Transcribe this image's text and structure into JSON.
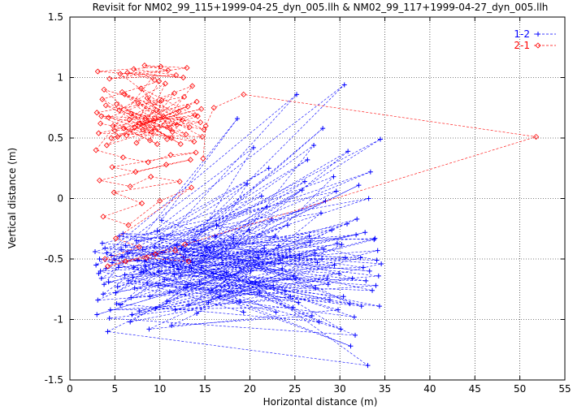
{
  "chart_data": {
    "type": "scatter",
    "title": "Revisit for NM02_99_115+1999-04-25_dyn_005.llh & NM02_99_117+1999-04-27_dyn_005.llh",
    "xlabel": "Horizontal distance (m)",
    "ylabel": "Vertical distance (m)",
    "xlim": [
      0,
      55
    ],
    "ylim": [
      -1.5,
      1.5
    ],
    "xticks": [
      0,
      5,
      10,
      15,
      20,
      25,
      30,
      35,
      40,
      45,
      50,
      55
    ],
    "yticks": [
      -1.5,
      -1,
      -0.5,
      0,
      0.5,
      1,
      1.5
    ],
    "ytick_labels": [
      "-1.5",
      "-1",
      "-0.5",
      "0",
      "0.5",
      "1",
      "1.5"
    ],
    "grid": true,
    "legend_position": "top-right",
    "series": [
      {
        "name": "1-2",
        "color": "#0000ff",
        "marker": "plus",
        "line": "dashed",
        "points": [
          [
            3.2,
            -0.62
          ],
          [
            30.5,
            0.94
          ],
          [
            12.4,
            -0.41
          ],
          [
            28.1,
            0.58
          ],
          [
            5.6,
            -0.88
          ],
          [
            34.5,
            0.49
          ],
          [
            8.3,
            -0.52
          ],
          [
            25.2,
            0.86
          ],
          [
            4.1,
            -0.45
          ],
          [
            22.8,
            -0.31
          ],
          [
            6.7,
            -1.02
          ],
          [
            31.4,
            -0.66
          ],
          [
            10.2,
            -0.18
          ],
          [
            18.6,
            0.66
          ],
          [
            3.8,
            -0.71
          ],
          [
            33.2,
            0.0
          ],
          [
            7.4,
            -0.35
          ],
          [
            27.9,
            -0.12
          ],
          [
            14.1,
            -0.95
          ],
          [
            29.3,
            0.18
          ],
          [
            2.9,
            -0.55
          ],
          [
            20.4,
            0.42
          ],
          [
            11.6,
            -0.63
          ],
          [
            32.8,
            -0.28
          ],
          [
            5.1,
            -0.78
          ],
          [
            26.4,
            0.32
          ],
          [
            9.2,
            -0.46
          ],
          [
            34.1,
            -0.51
          ],
          [
            16.3,
            -0.22
          ],
          [
            24.5,
            -0.81
          ],
          [
            4.4,
            -0.99
          ],
          [
            31.7,
            -1.13
          ],
          [
            13.5,
            -0.58
          ],
          [
            21.9,
            -0.07
          ],
          [
            6.2,
            -0.39
          ],
          [
            29.8,
            -0.92
          ],
          [
            8.8,
            -1.08
          ],
          [
            27.2,
            -0.45
          ],
          [
            3.5,
            -0.66
          ],
          [
            19.7,
            0.12
          ],
          [
            12.9,
            -0.74
          ],
          [
            33.8,
            -0.34
          ],
          [
            5.9,
            -0.29
          ],
          [
            23.6,
            -0.58
          ],
          [
            10.8,
            -0.85
          ],
          [
            30.9,
            0.39
          ],
          [
            7.9,
            -0.61
          ],
          [
            18.2,
            -0.33
          ],
          [
            3.1,
            -0.84
          ],
          [
            28.7,
            -0.71
          ],
          [
            14.8,
            -0.47
          ],
          [
            25.8,
            0.07
          ],
          [
            6.5,
            -0.68
          ],
          [
            32.4,
            -0.89
          ],
          [
            9.7,
            -0.27
          ],
          [
            22.1,
            0.25
          ],
          [
            4.7,
            -0.53
          ],
          [
            30.2,
            -0.38
          ],
          [
            11.3,
            -1.05
          ],
          [
            26.9,
            -0.97
          ],
          [
            8.1,
            -0.42
          ],
          [
            34.3,
            -0.64
          ],
          [
            15.7,
            -0.76
          ],
          [
            20.9,
            -0.49
          ],
          [
            3.6,
            -0.37
          ],
          [
            29.6,
            0.06
          ],
          [
            12.1,
            -0.59
          ],
          [
            24.2,
            -0.22
          ],
          [
            5.3,
            -0.73
          ],
          [
            31.9,
            -0.17
          ],
          [
            9.5,
            -0.91
          ],
          [
            17.4,
            -0.61
          ],
          [
            4.2,
            -1.1
          ],
          [
            33.1,
            -1.38
          ],
          [
            13.8,
            -0.34
          ],
          [
            27.5,
            -0.53
          ],
          [
            7.1,
            -0.57
          ],
          [
            21.3,
            0.02
          ],
          [
            2.8,
            -0.44
          ],
          [
            28.9,
            -0.84
          ],
          [
            10.5,
            -0.67
          ],
          [
            32.1,
            0.11
          ],
          [
            6.8,
            -0.82
          ],
          [
            25.1,
            -0.66
          ],
          [
            15.2,
            -0.4
          ],
          [
            19.3,
            -0.94
          ],
          [
            3.4,
            -0.6
          ],
          [
            30.6,
            -0.49
          ],
          [
            11.9,
            -0.38
          ],
          [
            26.1,
            0.14
          ],
          [
            8.6,
            -0.7
          ],
          [
            33.6,
            -0.76
          ],
          [
            5.5,
            -0.31
          ],
          [
            23.2,
            -0.39
          ],
          [
            13.2,
            -0.88
          ],
          [
            29.1,
            -0.26
          ],
          [
            4.9,
            -0.5
          ],
          [
            31.2,
            -1.22
          ],
          [
            9.9,
            -0.6
          ],
          [
            22.6,
            -0.72
          ],
          [
            7.7,
            -0.93
          ],
          [
            34.2,
            -0.43
          ],
          [
            16.9,
            -0.53
          ],
          [
            27.1,
            0.44
          ],
          [
            3.7,
            -0.79
          ],
          [
            20.1,
            -0.6
          ],
          [
            12.6,
            -0.48
          ],
          [
            28.4,
            -0.02
          ],
          [
            6.1,
            -0.63
          ],
          [
            32.6,
            -0.57
          ],
          [
            10.1,
            -0.33
          ],
          [
            24.8,
            -0.9
          ],
          [
            4.5,
            -0.92
          ],
          [
            30.4,
            -0.81
          ],
          [
            14.4,
            -0.69
          ],
          [
            21.6,
            -0.41
          ],
          [
            8.4,
            -0.56
          ],
          [
            33.4,
            0.22
          ],
          [
            5.8,
            -0.48
          ],
          [
            26.6,
            -0.31
          ],
          [
            11.1,
            -0.77
          ],
          [
            29.9,
            -0.62
          ],
          [
            3.3,
            -0.5
          ],
          [
            18.9,
            -0.85
          ],
          [
            13.6,
            -0.53
          ],
          [
            31.6,
            -0.98
          ],
          [
            7.2,
            -0.74
          ],
          [
            25.5,
            -0.47
          ],
          [
            9.4,
            -0.4
          ],
          [
            34.6,
            -0.54
          ],
          [
            15.4,
            -0.86
          ],
          [
            22.4,
            -0.17
          ],
          [
            4.0,
            -0.58
          ],
          [
            28.2,
            -0.42
          ],
          [
            12.3,
            -0.64
          ],
          [
            32.9,
            -0.68
          ],
          [
            6.4,
            -0.45
          ],
          [
            23.9,
            -0.76
          ],
          [
            10.6,
            -0.52
          ],
          [
            30.8,
            -0.21
          ],
          [
            5.2,
            -0.87
          ],
          [
            27.7,
            -1.02
          ],
          [
            14.6,
            -0.57
          ],
          [
            19.9,
            -0.26
          ],
          [
            8.9,
            -0.81
          ],
          [
            33.9,
            -0.33
          ],
          [
            3.9,
            -0.41
          ],
          [
            24.9,
            -0.64
          ],
          [
            11.7,
            -0.92
          ],
          [
            29.4,
            -0.55
          ],
          [
            7.5,
            -0.51
          ],
          [
            31.1,
            -0.87
          ],
          [
            16.1,
            -0.31
          ],
          [
            21.1,
            -0.78
          ],
          [
            4.3,
            -0.69
          ],
          [
            26.7,
            -0.36
          ],
          [
            12.8,
            -0.44
          ],
          [
            32.3,
            -0.49
          ],
          [
            6.9,
            -0.96
          ],
          [
            28.6,
            -0.66
          ],
          [
            9.8,
            -0.72
          ],
          [
            34.4,
            -0.89
          ],
          [
            15.9,
            -0.62
          ],
          [
            23.4,
            -0.51
          ],
          [
            3.0,
            -0.96
          ],
          [
            29.7,
            -0.37
          ],
          [
            13.1,
            -0.71
          ],
          [
            25.4,
            -0.86
          ],
          [
            5.7,
            -0.42
          ],
          [
            33.3,
            -0.6
          ],
          [
            10.3,
            -0.45
          ],
          [
            20.6,
            -0.69
          ],
          [
            8.2,
            -0.6
          ],
          [
            30.1,
            -1.08
          ],
          [
            14.3,
            -0.37
          ],
          [
            27.3,
            -0.74
          ],
          [
            4.6,
            -0.47
          ],
          [
            31.8,
            -0.3
          ],
          [
            11.4,
            -0.55
          ],
          [
            22.9,
            -0.94
          ],
          [
            7.0,
            -0.65
          ],
          [
            28.0,
            -0.5
          ],
          [
            16.6,
            -0.81
          ],
          [
            34.0,
            -0.72
          ],
          [
            5.4,
            -0.57
          ],
          [
            24.4,
            -0.42
          ]
        ]
      },
      {
        "name": "2-1",
        "color": "#ff0000",
        "marker": "diamond",
        "line": "dashed",
        "points": [
          [
            3.4,
            0.62
          ],
          [
            13.8,
            0.47
          ],
          [
            5.2,
            0.78
          ],
          [
            11.4,
            0.55
          ],
          [
            7.9,
            0.91
          ],
          [
            14.2,
            0.68
          ],
          [
            4.1,
            0.44
          ],
          [
            9.6,
            0.73
          ],
          [
            6.3,
            0.52
          ],
          [
            12.7,
            0.84
          ],
          [
            3.0,
            0.71
          ],
          [
            10.8,
            0.49
          ],
          [
            8.4,
            0.66
          ],
          [
            14.9,
            0.57
          ],
          [
            5.8,
            0.88
          ],
          [
            11.9,
            0.61
          ],
          [
            4.6,
            0.5
          ],
          [
            13.1,
            0.76
          ],
          [
            7.2,
            0.59
          ],
          [
            9.9,
            0.97
          ],
          [
            3.6,
            0.82
          ],
          [
            12.3,
            0.45
          ],
          [
            6.8,
            0.7
          ],
          [
            14.5,
            0.63
          ],
          [
            5.0,
            0.56
          ],
          [
            10.2,
            0.81
          ],
          [
            8.9,
            0.48
          ],
          [
            13.6,
            0.93
          ],
          [
            4.3,
            0.67
          ],
          [
            11.1,
            0.58
          ],
          [
            7.6,
            0.79
          ],
          [
            14.7,
            0.51
          ],
          [
            3.2,
            0.54
          ],
          [
            9.3,
            0.64
          ],
          [
            6.1,
            0.86
          ],
          [
            12.9,
            0.53
          ],
          [
            5.5,
            0.73
          ],
          [
            10.6,
            0.95
          ],
          [
            8.1,
            0.57
          ],
          [
            13.9,
            0.69
          ],
          [
            4.8,
            0.6
          ],
          [
            11.6,
            0.87
          ],
          [
            7.4,
            0.46
          ],
          [
            12.1,
            0.72
          ],
          [
            3.8,
            0.9
          ],
          [
            9.1,
            0.55
          ],
          [
            6.6,
            0.65
          ],
          [
            14.1,
            0.8
          ],
          [
            5.3,
            0.51
          ],
          [
            10.4,
            0.68
          ],
          [
            8.6,
            0.83
          ],
          [
            13.3,
            0.59
          ],
          [
            4.0,
            0.77
          ],
          [
            11.3,
            0.5
          ],
          [
            7.8,
            0.62
          ],
          [
            14.6,
            0.74
          ],
          [
            6.0,
            0.58
          ],
          [
            9.7,
            0.45
          ],
          [
            3.5,
            0.68
          ],
          [
            12.5,
            0.65
          ],
          [
            5.6,
            1.03
          ],
          [
            10.9,
            1.06
          ],
          [
            8.3,
            1.1
          ],
          [
            13.0,
            1.08
          ],
          [
            4.4,
            0.99
          ],
          [
            11.8,
            1.02
          ],
          [
            7.1,
            1.07
          ],
          [
            9.4,
            0.98
          ],
          [
            6.4,
            1.04
          ],
          [
            12.6,
            1.0
          ],
          [
            3.1,
            1.05
          ],
          [
            10.1,
            1.09
          ],
          [
            2.9,
            0.4
          ],
          [
            5.9,
            0.34
          ],
          [
            8.7,
            0.3
          ],
          [
            11.2,
            0.36
          ],
          [
            14.0,
            0.38
          ],
          [
            4.7,
            0.26
          ],
          [
            7.3,
            0.22
          ],
          [
            10.7,
            0.28
          ],
          [
            13.4,
            0.32
          ],
          [
            3.3,
            0.15
          ],
          [
            6.7,
            0.1
          ],
          [
            9.0,
            0.18
          ],
          [
            12.2,
            0.14
          ],
          [
            4.9,
            0.05
          ],
          [
            8.0,
            -0.04
          ],
          [
            3.7,
            -0.15
          ],
          [
            6.5,
            -0.22
          ],
          [
            10.0,
            -0.02
          ],
          [
            13.5,
            0.09
          ],
          [
            5.1,
            -0.33
          ],
          [
            7.7,
            -0.4
          ],
          [
            3.9,
            -0.5
          ],
          [
            6.2,
            -0.52
          ],
          [
            9.5,
            -0.46
          ],
          [
            11.7,
            -0.43
          ],
          [
            13.2,
            -0.52
          ],
          [
            8.5,
            -0.49
          ],
          [
            4.2,
            -0.56
          ],
          [
            12.8,
            -0.38
          ],
          [
            51.8,
            0.51
          ],
          [
            19.3,
            0.86
          ],
          [
            16.0,
            0.75
          ],
          [
            15.1,
            0.6
          ],
          [
            14.8,
            0.33
          ]
        ]
      }
    ]
  }
}
